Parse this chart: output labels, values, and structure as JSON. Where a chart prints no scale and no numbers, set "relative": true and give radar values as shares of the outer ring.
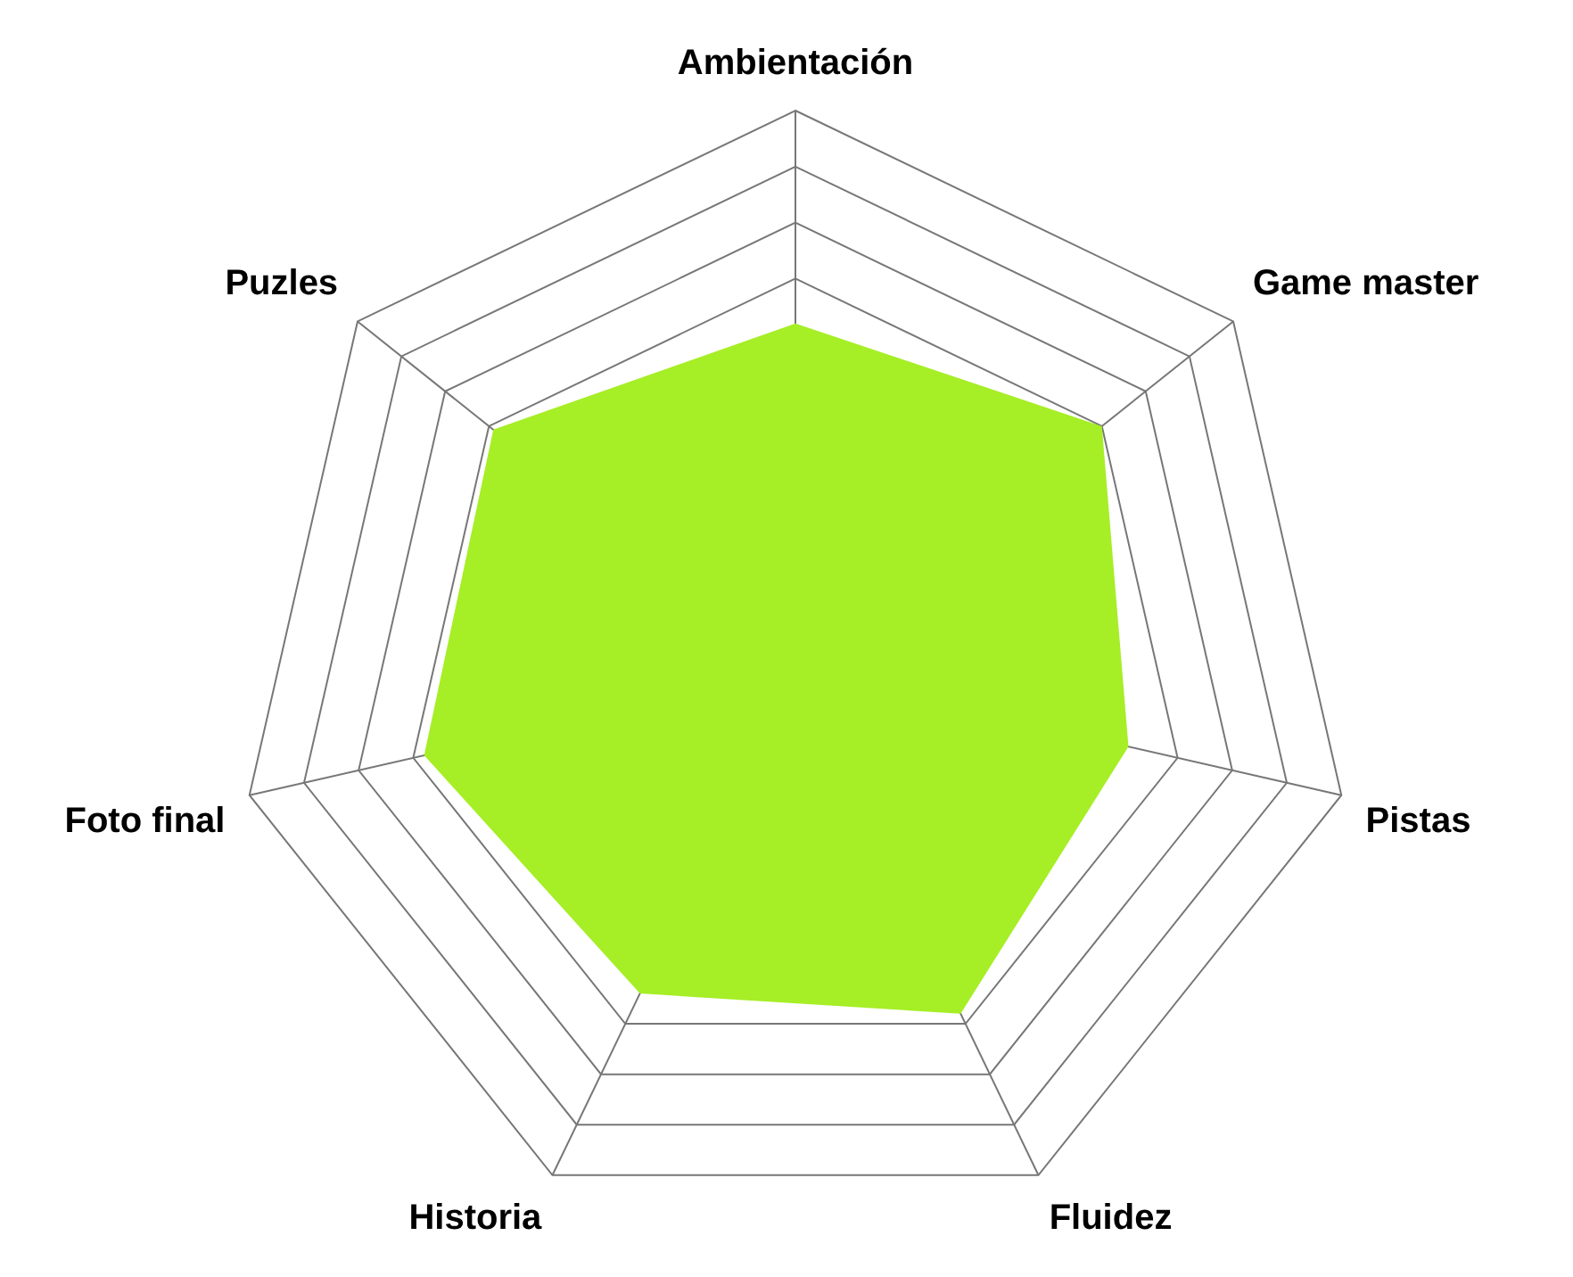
{
  "chart_data": {
    "type": "radar",
    "relative": true,
    "categories": [
      "Ambientación",
      "Game master",
      "Pistas",
      "Fluidez",
      "Historia",
      "Foto final",
      "Puzles"
    ],
    "series": [
      {
        "color": "#a6ee26",
        "values": [
          0.62,
          0.7,
          0.61,
          0.68,
          0.64,
          0.68,
          0.69
        ]
      }
    ],
    "legend": false
  }
}
